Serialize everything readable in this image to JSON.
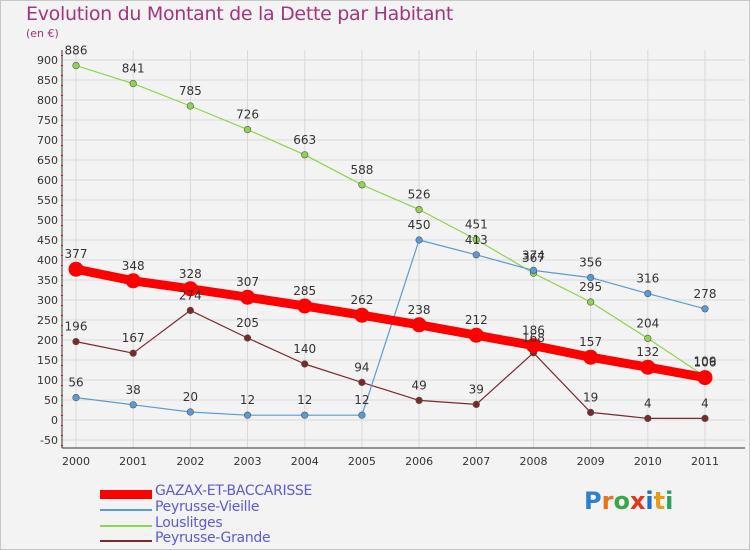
{
  "title": "Evolution du Montant de la Dette par Habitant",
  "unit_label": "(en €)",
  "brand": "Proxiti",
  "colors": {
    "title": "#a3357a",
    "legend_text": "#5b5bd6",
    "grid": "#d9d9d9",
    "axis": "#333333"
  },
  "chart_data": {
    "type": "line",
    "title": "Evolution du Montant de la Dette par Habitant",
    "ylabel": "(en €)",
    "xlabel": "",
    "x": [
      "2000",
      "2001",
      "2002",
      "2003",
      "2004",
      "2005",
      "2006",
      "2007",
      "2008",
      "2009",
      "2010",
      "2011"
    ],
    "ylim": [
      -50,
      900
    ],
    "yticks": [
      -50,
      0,
      50,
      100,
      150,
      200,
      250,
      300,
      350,
      400,
      450,
      500,
      550,
      600,
      650,
      700,
      750,
      800,
      850,
      900
    ],
    "grid": true,
    "legend_position": "bottom-left",
    "series": [
      {
        "name": "GAZAX-ET-BACCARISSE",
        "color": "#ff0000",
        "values": [
          377,
          348,
          328,
          307,
          285,
          262,
          238,
          212,
          186,
          157,
          132,
          106
        ],
        "bold": true
      },
      {
        "name": "Peyrusse-Vieille",
        "color": "#5b9bd5",
        "values": [
          56,
          38,
          20,
          12,
          12,
          12,
          450,
          413,
          374,
          356,
          316,
          278
        ]
      },
      {
        "name": "Louslitges",
        "color": "#8fd34f",
        "values": [
          886,
          841,
          785,
          726,
          663,
          588,
          526,
          451,
          367,
          295,
          204,
          109
        ]
      },
      {
        "name": "Peyrusse-Grande",
        "color": "#7b2a2a",
        "values": [
          196,
          167,
          274,
          205,
          140,
          94,
          49,
          39,
          168,
          19,
          4,
          4
        ]
      }
    ]
  }
}
